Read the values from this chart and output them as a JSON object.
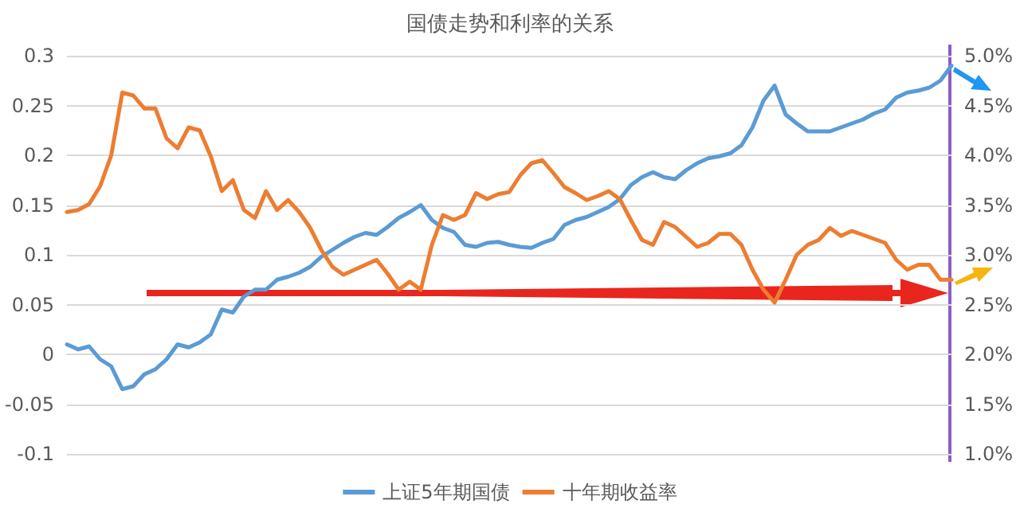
{
  "chart_data": {
    "type": "line",
    "title": "国债走势和利率的关系",
    "categories": [
      null,
      null,
      null,
      null,
      null,
      null,
      null,
      null,
      null,
      null,
      null,
      null,
      null,
      null,
      null,
      null,
      null,
      null,
      null,
      null,
      null,
      null,
      null,
      null,
      null,
      null,
      null,
      null,
      null,
      null,
      null,
      null,
      null,
      null,
      null,
      null,
      null,
      null,
      null,
      null,
      null,
      null,
      null,
      null,
      null,
      null,
      null,
      null,
      null,
      null,
      null,
      null,
      null,
      null,
      null,
      null,
      null,
      null,
      null,
      null,
      null,
      null,
      null,
      null,
      null,
      null,
      null,
      null,
      null,
      null,
      null,
      null,
      null,
      null,
      null,
      null,
      null,
      null,
      null,
      null,
      null
    ],
    "series": [
      {
        "name": "上证5年期国债",
        "color": "#5b9bd5",
        "values": [
          0.01,
          0.005,
          0.008,
          -0.005,
          -0.012,
          -0.035,
          -0.032,
          -0.02,
          -0.015,
          -0.005,
          0.01,
          0.007,
          0.012,
          0.02,
          0.045,
          0.042,
          0.058,
          0.065,
          0.065,
          0.075,
          0.078,
          0.082,
          0.088,
          0.098,
          0.105,
          0.112,
          0.118,
          0.122,
          0.12,
          0.128,
          0.137,
          0.143,
          0.15,
          0.135,
          0.127,
          0.123,
          0.11,
          0.108,
          0.112,
          0.113,
          0.11,
          0.108,
          0.107,
          0.112,
          0.116,
          0.13,
          0.135,
          0.138,
          0.143,
          0.148,
          0.156,
          0.17,
          0.178,
          0.183,
          0.178,
          0.176,
          0.185,
          0.192,
          0.197,
          0.199,
          0.202,
          0.21,
          0.228,
          0.255,
          0.27,
          0.241,
          0.232,
          0.224,
          0.224,
          0.224,
          0.228,
          0.232,
          0.236,
          0.242,
          0.246,
          0.258,
          0.263,
          0.265,
          0.268,
          0.275,
          0.29
        ]
      },
      {
        "name": "十年期收益率",
        "color": "#ed7d31",
        "axis": "y2",
        "values": [
          3.43,
          3.45,
          3.51,
          3.69,
          4.0,
          4.63,
          4.6,
          4.47,
          4.47,
          4.17,
          4.07,
          4.28,
          4.25,
          3.99,
          3.64,
          3.75,
          3.45,
          3.37,
          3.64,
          3.45,
          3.55,
          3.43,
          3.27,
          3.05,
          2.88,
          2.8,
          2.85,
          2.9,
          2.95,
          2.81,
          2.65,
          2.73,
          2.65,
          3.1,
          3.4,
          3.35,
          3.4,
          3.62,
          3.56,
          3.61,
          3.63,
          3.8,
          3.92,
          3.95,
          3.82,
          3.68,
          3.62,
          3.55,
          3.59,
          3.64,
          3.56,
          3.35,
          3.15,
          3.1,
          3.33,
          3.28,
          3.18,
          3.08,
          3.12,
          3.21,
          3.21,
          3.1,
          2.85,
          2.65,
          2.52,
          2.75,
          3.0,
          3.1,
          3.15,
          3.27,
          3.19,
          3.24,
          3.2,
          3.16,
          3.12,
          2.95,
          2.85,
          2.9,
          2.9,
          2.75,
          2.75
        ]
      }
    ],
    "ylim": [
      -0.1,
      0.3
    ],
    "yticks": [
      -0.1,
      -0.05,
      0,
      0.05,
      0.1,
      0.15,
      0.2,
      0.25,
      0.3
    ],
    "y2lim": [
      1,
      5
    ],
    "y2ticks": [
      {
        "value": 1,
        "label": "1.0%"
      },
      {
        "value": 1.5,
        "label": "1.5%"
      },
      {
        "value": 2,
        "label": "2.0%"
      },
      {
        "value": 2.5,
        "label": "2.5%"
      },
      {
        "value": 3,
        "label": "3.0%"
      },
      {
        "value": 3.5,
        "label": "3.5%"
      },
      {
        "value": 4,
        "label": "4.0%"
      },
      {
        "value": 4.5,
        "label": "4.5%"
      },
      {
        "value": 5,
        "label": "5.0%"
      }
    ],
    "grid": "y",
    "legend": "bottom",
    "marker": "none",
    "line_style": "solid"
  }
}
